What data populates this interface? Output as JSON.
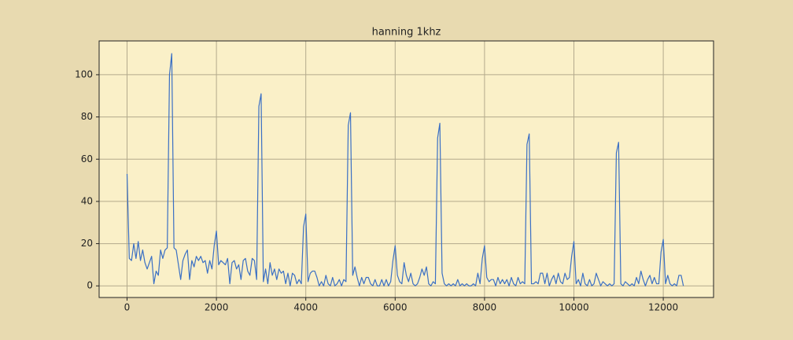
{
  "chart_data": {
    "type": "line",
    "title": "hanning 1khz",
    "x": [
      0,
      50,
      100,
      150,
      200,
      250,
      300,
      350,
      400,
      450,
      500,
      550,
      600,
      650,
      700,
      750,
      800,
      850,
      900,
      950,
      1000,
      1050,
      1100,
      1150,
      1200,
      1250,
      1300,
      1350,
      1400,
      1450,
      1500,
      1550,
      1600,
      1650,
      1700,
      1750,
      1800,
      1850,
      1900,
      1950,
      2000,
      2050,
      2100,
      2150,
      2200,
      2250,
      2300,
      2350,
      2400,
      2450,
      2500,
      2550,
      2600,
      2650,
      2700,
      2750,
      2800,
      2850,
      2900,
      2950,
      3000,
      3050,
      3100,
      3150,
      3200,
      3250,
      3300,
      3350,
      3400,
      3450,
      3500,
      3550,
      3600,
      3650,
      3700,
      3750,
      3800,
      3850,
      3900,
      3950,
      4000,
      4050,
      4100,
      4150,
      4200,
      4250,
      4300,
      4350,
      4400,
      4450,
      4500,
      4550,
      4600,
      4650,
      4700,
      4750,
      4800,
      4850,
      4900,
      4950,
      5000,
      5050,
      5100,
      5150,
      5200,
      5250,
      5300,
      5350,
      5400,
      5450,
      5500,
      5550,
      5600,
      5650,
      5700,
      5750,
      5800,
      5850,
      5900,
      5950,
      6000,
      6050,
      6100,
      6150,
      6200,
      6250,
      6300,
      6350,
      6400,
      6450,
      6500,
      6550,
      6600,
      6650,
      6700,
      6750,
      6800,
      6850,
      6900,
      6950,
      7000,
      7050,
      7100,
      7150,
      7200,
      7250,
      7300,
      7350,
      7400,
      7450,
      7500,
      7550,
      7600,
      7650,
      7700,
      7750,
      7800,
      7850,
      7900,
      7950,
      8000,
      8050,
      8100,
      8150,
      8200,
      8250,
      8300,
      8350,
      8400,
      8450,
      8500,
      8550,
      8600,
      8650,
      8700,
      8750,
      8800,
      8850,
      8900,
      8950,
      9000,
      9050,
      9100,
      9150,
      9200,
      9250,
      9300,
      9350,
      9400,
      9450,
      9500,
      9550,
      9600,
      9650,
      9700,
      9750,
      9800,
      9850,
      9900,
      9950,
      10000,
      10050,
      10100,
      10150,
      10200,
      10250,
      10300,
      10350,
      10400,
      10450,
      10500,
      10550,
      10600,
      10650,
      10700,
      10750,
      10800,
      10850,
      10900,
      10950,
      11000,
      11050,
      11100,
      11150,
      11200,
      11250,
      11300,
      11350,
      11400,
      11450,
      11500,
      11550,
      11600,
      11650,
      11700,
      11750,
      11800,
      11850,
      11900,
      11950,
      12000,
      12050,
      12100,
      12150,
      12200,
      12250,
      12300,
      12350,
      12400,
      12450
    ],
    "series": [
      {
        "color": "#3a6fc4",
        "values": [
          53,
          13,
          12,
          20,
          13,
          21,
          12,
          17,
          11,
          8,
          11,
          14,
          1,
          7,
          5,
          17,
          13,
          17,
          18,
          100,
          110,
          18,
          17,
          10,
          3,
          12,
          15,
          17,
          3,
          12,
          9,
          14,
          12,
          14,
          11,
          12,
          6,
          12,
          8,
          19,
          26,
          10,
          12,
          11,
          10,
          13,
          1,
          11,
          12,
          8,
          10,
          3,
          12,
          13,
          7,
          5,
          13,
          12,
          3,
          85,
          91,
          2,
          8,
          1,
          11,
          5,
          8,
          3,
          8,
          6,
          7,
          1,
          6,
          0,
          6,
          5,
          1,
          3,
          1,
          28,
          34,
          2,
          6,
          7,
          7,
          4,
          0,
          2,
          0,
          5,
          1,
          0,
          4,
          0,
          1,
          3,
          0,
          3,
          2,
          76,
          82,
          5,
          9,
          4,
          0,
          4,
          1,
          4,
          4,
          1,
          0,
          3,
          0,
          0,
          3,
          0,
          3,
          0,
          2,
          12,
          19,
          5,
          2,
          1,
          11,
          5,
          2,
          6,
          1,
          0,
          1,
          4,
          8,
          5,
          9,
          1,
          0,
          2,
          1,
          70,
          77,
          6,
          1,
          0,
          1,
          0,
          1,
          0,
          3,
          0,
          1,
          0,
          1,
          0,
          0,
          1,
          0,
          6,
          1,
          13,
          19,
          4,
          2,
          3,
          3,
          0,
          4,
          1,
          3,
          1,
          3,
          0,
          4,
          1,
          0,
          4,
          1,
          2,
          1,
          67,
          72,
          1,
          1,
          2,
          1,
          6,
          6,
          1,
          6,
          0,
          3,
          5,
          1,
          6,
          2,
          1,
          6,
          3,
          4,
          14,
          21,
          1,
          3,
          0,
          6,
          1,
          0,
          3,
          0,
          1,
          6,
          3,
          0,
          2,
          1,
          0,
          1,
          0,
          1,
          63,
          68,
          1,
          0,
          2,
          1,
          0,
          1,
          0,
          4,
          1,
          7,
          3,
          0,
          3,
          5,
          1,
          4,
          1,
          1,
          16,
          22,
          1,
          5,
          1,
          0,
          1,
          0,
          5,
          5,
          0
        ]
      }
    ],
    "xlim": [
      -625,
      13125
    ],
    "ylim": [
      -5.5,
      116
    ],
    "xticks": [
      0,
      2000,
      4000,
      6000,
      8000,
      10000,
      12000
    ],
    "yticks": [
      0,
      20,
      40,
      60,
      80,
      100
    ],
    "grid": true
  }
}
